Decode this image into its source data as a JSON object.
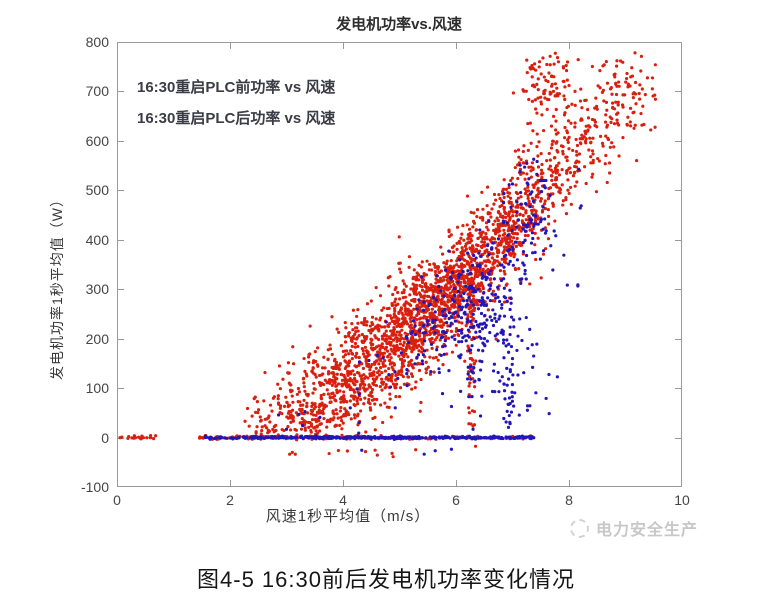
{
  "figure": {
    "caption": "图4-5 16:30前后发电机功率变化情况",
    "watermark": {
      "icon": "publisher-logo-icon",
      "text": "电力安全生产",
      "color": "#c7c7c7"
    }
  },
  "chart_data": {
    "type": "scatter",
    "title": "发电机功率vs.风速",
    "xlabel": "风速1秒平均值（m/s）",
    "ylabel": "发电机功率1秒平均值（W）",
    "xlim": [
      0,
      10
    ],
    "ylim": [
      -100,
      800
    ],
    "xticks": [
      0,
      2,
      4,
      6,
      8,
      10
    ],
    "yticks": [
      -100,
      0,
      100,
      200,
      300,
      400,
      500,
      600,
      700,
      800
    ],
    "grid": false,
    "axis_color": "#9a9a9a",
    "tick_label_color": "#454545",
    "legend": {
      "position": "top-left",
      "entries": [
        "16:30重启PLC前功率 vs 风速",
        "16:30重启PLC后功率 vs 风速"
      ]
    },
    "power_curve_anchors": [
      [
        2.2,
        0
      ],
      [
        3,
        45
      ],
      [
        4,
        110
      ],
      [
        5,
        195
      ],
      [
        6,
        300
      ],
      [
        7,
        430
      ],
      [
        8,
        565
      ],
      [
        9,
        670
      ],
      [
        9.6,
        720
      ]
    ],
    "series": [
      {
        "name": "16:30重启PLC前功率 vs 风速",
        "color": "#d9200f",
        "marker": "dot",
        "clusters": [
          {
            "desc": "main power-curve cloud 2.3-9.5 m/s, 0-775 W",
            "n": 2300,
            "v": {
              "mix": [
                [
                  4.3,
                  0.9,
                  0.42
                ],
                [
                  5.9,
                  0.8,
                  0.33
                ],
                [
                  7.35,
                  0.85,
                  0.25
                ]
              ],
              "clip": [
                2.25,
                9.55
              ]
            },
            "p": {
              "curve": {
                "sd": 55,
                "offset": 0
              },
              "clip": [
                2,
                778
              ]
            }
          },
          {
            "desc": "dense horizontal streak near 300 W",
            "n": 120,
            "v": {
              "normal": [
                5.7,
                0.45
              ],
              "clip": [
                4.8,
                6.5
              ]
            },
            "p": {
              "normal": [
                295,
                25
              ],
              "clip": [
                240,
                350
              ]
            }
          },
          {
            "desc": "dense clump near (7.6, 715)",
            "n": 90,
            "v": {
              "normal": [
                7.62,
                0.28
              ],
              "clip": [
                7.0,
                8.3
              ]
            },
            "p": {
              "normal": [
                715,
                35
              ],
              "clip": [
                620,
                778
              ]
            }
          },
          {
            "desc": "far-right cloud near (8.9, 690)",
            "n": 80,
            "v": {
              "normal": [
                8.9,
                0.33
              ],
              "clip": [
                8.2,
                9.55
              ]
            },
            "p": {
              "normal": [
                690,
                45
              ],
              "clip": [
                575,
                775
              ]
            }
          },
          {
            "desc": "vertical string at 6.27 m/s",
            "n": 55,
            "v": {
              "normal": [
                6.27,
                0.05
              ]
            },
            "p": {
              "uniform": [
                15,
                300
              ]
            }
          },
          {
            "desc": "low fringe 2.3-3.6 m/s",
            "n": 60,
            "v": {
              "uniform": [
                2.3,
                3.6
              ]
            },
            "p": {
              "uniform": [
                4,
                60
              ]
            }
          },
          {
            "desc": "zero-power line 1.45-7.36 m/s",
            "n": 190,
            "v": {
              "uniform": [
                1.45,
                7.36
              ]
            },
            "p": {
              "normal": [
                0,
                1.8
              ]
            }
          },
          {
            "desc": "zero-power dots 0-0.75 m/s",
            "n": 22,
            "v": {
              "uniform": [
                0.03,
                0.75
              ]
            },
            "p": {
              "normal": [
                0,
                1.5
              ]
            }
          },
          {
            "desc": "strays below zero ~ -28 W",
            "n": 13,
            "v": {
              "uniform": [
                2.8,
                6.6
              ]
            },
            "p": {
              "normal": [
                -28,
                7
              ]
            }
          }
        ]
      },
      {
        "name": "16:30重启PLC后功率 vs 风速",
        "color": "#2316b6",
        "marker": "dot",
        "clusters": [
          {
            "desc": "blob near (6.25, 245)",
            "n": 160,
            "v": {
              "normal": [
                6.25,
                0.42
              ],
              "clip": [
                5.2,
                7.2
              ]
            },
            "p": {
              "normal": [
                245,
                65
              ],
              "clip": [
                80,
                400
              ]
            }
          },
          {
            "desc": "band along curve shifted -40 W",
            "n": 110,
            "v": {
              "uniform": [
                5.4,
                7.6
              ]
            },
            "p": {
              "curve": {
                "sd": 45,
                "offset": -40
              },
              "clip": [
                60,
                520
              ]
            }
          },
          {
            "desc": "lower scatter near (6.85, 140)",
            "n": 70,
            "v": {
              "normal": [
                6.85,
                0.4
              ],
              "clip": [
                5.9,
                7.9
              ]
            },
            "p": {
              "normal": [
                140,
                85
              ],
              "clip": [
                10,
                330
              ]
            }
          },
          {
            "desc": "vertical string at 6.93 m/s",
            "n": 30,
            "v": {
              "normal": [
                6.93,
                0.05
              ]
            },
            "p": {
              "uniform": [
                20,
                300
              ]
            }
          },
          {
            "desc": "sparse upper right 300-560 W",
            "n": 40,
            "v": {
              "uniform": [
                6.7,
                8.35
              ]
            },
            "p": {
              "uniform": [
                300,
                560
              ]
            }
          },
          {
            "desc": "clump near (7.4, 470)",
            "n": 20,
            "v": {
              "normal": [
                7.4,
                0.22
              ]
            },
            "p": {
              "normal": [
                470,
                55
              ],
              "clip": [
                360,
                580
              ]
            }
          },
          {
            "desc": "sprinkle inside red cloud",
            "n": 50,
            "v": {
              "normal": [
                5.3,
                0.8
              ],
              "clip": [
                4.0,
                6.6
              ]
            },
            "p": {
              "curve": {
                "sd": 60,
                "offset": -20
              },
              "clip": [
                60,
                520
              ]
            }
          },
          {
            "desc": "few low-left dots",
            "n": 8,
            "v": {
              "uniform": [
                2.8,
                4.5
              ]
            },
            "p": {
              "uniform": [
                5,
                60
              ]
            }
          },
          {
            "desc": "dense zero-power line 2.3-7.38 m/s",
            "n": 380,
            "v": {
              "uniform": [
                2.28,
                7.38
              ]
            },
            "p": {
              "normal": [
                0,
                1.2
              ]
            }
          },
          {
            "desc": "zero-power dots 1.55-2.3 m/s",
            "n": 28,
            "v": {
              "uniform": [
                1.55,
                2.3
              ]
            },
            "p": {
              "normal": [
                0,
                1.2
              ]
            }
          },
          {
            "desc": "strays below zero",
            "n": 4,
            "v": {
              "uniform": [
                4.3,
                6.3
              ]
            },
            "p": {
              "normal": [
                -27,
                5
              ]
            }
          }
        ]
      }
    ]
  }
}
